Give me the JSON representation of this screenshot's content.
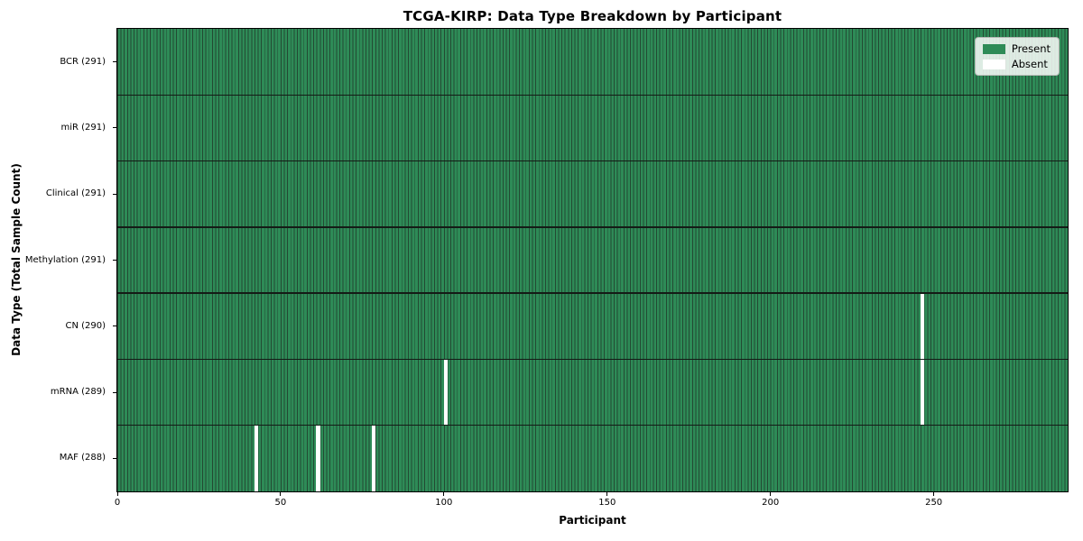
{
  "chart_data": {
    "type": "heatmap",
    "title": "TCGA-KIRP: Data Type Breakdown by Participant",
    "xlabel": "Participant",
    "ylabel": "Data Type (Total Sample Count)",
    "n_participants": 291,
    "xlim": [
      0,
      291
    ],
    "x_ticks": [
      0,
      50,
      100,
      150,
      200,
      250
    ],
    "grid": false,
    "legend_position": "upper right",
    "rows": [
      {
        "label": "BCR (291)",
        "data_type": "BCR",
        "present_count": 291,
        "absent_participants": []
      },
      {
        "label": "miR (291)",
        "data_type": "miR",
        "present_count": 291,
        "absent_participants": []
      },
      {
        "label": "Clinical (291)",
        "data_type": "Clinical",
        "present_count": 291,
        "absent_participants": []
      },
      {
        "label": "Methylation (291)",
        "data_type": "Methylation",
        "present_count": 291,
        "absent_participants": []
      },
      {
        "label": "CN (290)",
        "data_type": "CN",
        "present_count": 290,
        "absent_participants": [
          246
        ]
      },
      {
        "label": "mRNA (289)",
        "data_type": "mRNA",
        "present_count": 289,
        "absent_participants": [
          100,
          246
        ]
      },
      {
        "label": "MAF (288)",
        "data_type": "MAF",
        "present_count": 288,
        "absent_participants": [
          42,
          61,
          78
        ]
      }
    ],
    "legend": [
      {
        "label": "Present",
        "color": "#2e8b57"
      },
      {
        "label": "Absent",
        "color": "#ffffff"
      }
    ],
    "colors": {
      "present": "#2e8b57",
      "bar_edge": "#234a33",
      "absent": "#ffffff",
      "row_separator": "#141b16",
      "spine": "#000000"
    }
  }
}
